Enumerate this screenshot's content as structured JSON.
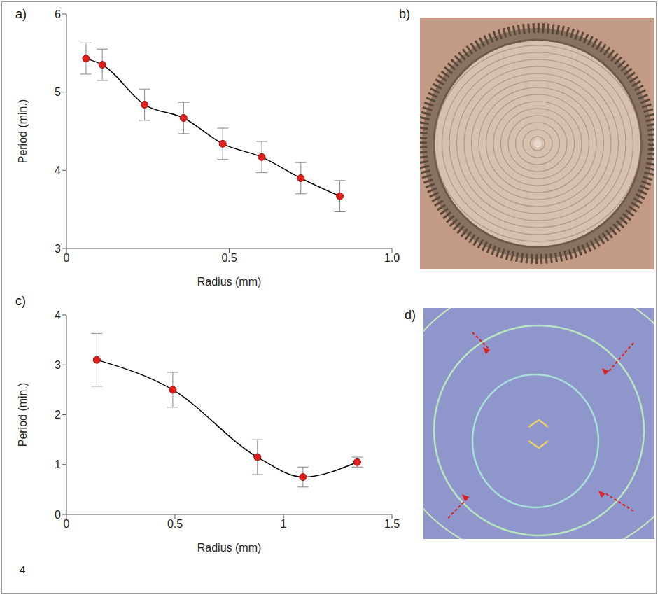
{
  "panels": [
    "a)",
    "b)",
    "c)",
    "d)"
  ],
  "annotations": [
    "4"
  ],
  "chart_data": [
    {
      "panel": "a)",
      "type": "line",
      "xlabel": "Radius (mm)",
      "ylabel": "Period (min.)",
      "x": [
        0.06,
        0.11,
        0.24,
        0.36,
        0.48,
        0.6,
        0.72,
        0.84
      ],
      "series": [
        {
          "color": "#000000",
          "marker": "circle",
          "line_style": "solid",
          "values": [
            5.43,
            5.35,
            4.84,
            4.67,
            4.34,
            4.17,
            3.9,
            3.67
          ],
          "errors": [
            0.2,
            0.2,
            0.2,
            0.2,
            0.2,
            0.2,
            0.2,
            0.2
          ]
        }
      ],
      "xlim": [
        0,
        1
      ],
      "xticks": [
        0,
        0.5,
        {
          "value": 1,
          "label": "1.0"
        }
      ],
      "ylim": [
        3,
        6
      ],
      "yticks": [
        3,
        4,
        5,
        6
      ],
      "grid": false
    },
    {
      "panel": "c)",
      "type": "line",
      "xlabel": "Radius (mm)",
      "ylabel": "Period (min.)",
      "x": [
        0.14,
        0.49,
        0.88,
        1.09,
        1.34
      ],
      "series": [
        {
          "color": "#000000",
          "marker": "circle",
          "line_style": "solid",
          "values": [
            3.1,
            2.5,
            1.15,
            0.75,
            1.05
          ],
          "errors": [
            0.53,
            0.35,
            0.35,
            0.2,
            0.1
          ]
        }
      ],
      "xlim": [
        0,
        1.5
      ],
      "xticks": [
        0,
        0.5,
        1,
        1.5
      ],
      "ylim": [
        0,
        4
      ],
      "yticks": [
        0,
        1,
        2,
        3,
        4
      ],
      "grid": false
    }
  ]
}
